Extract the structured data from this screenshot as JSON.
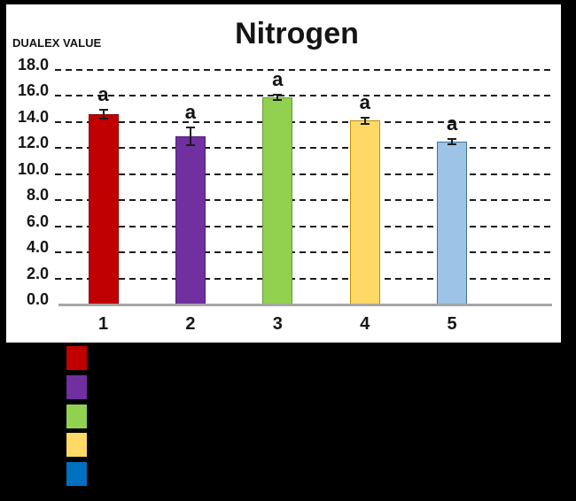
{
  "chart_data": {
    "type": "bar",
    "title": "Nitrogen",
    "ylabel": "DUALEX VALUE",
    "categories": [
      "1",
      "2",
      "3",
      "4",
      "5"
    ],
    "values": [
      14.6,
      12.9,
      15.9,
      14.1,
      12.5
    ],
    "errors": [
      0.4,
      0.75,
      0.3,
      0.3,
      0.3
    ],
    "point_labels": [
      "a",
      "a",
      "a",
      "a",
      "a"
    ],
    "ylim": [
      0,
      18
    ],
    "ytick_step": 2,
    "ytick_labels": [
      "0.0",
      "2.0",
      "4.0",
      "6.0",
      "8.0",
      "10.0",
      "12.0",
      "14.0",
      "16.0",
      "18.0"
    ],
    "grid": "dashed-horizontal",
    "axis_line_color": "#a6a6a6",
    "bar_colors": [
      "#c00000",
      "#7030a0",
      "#92d050",
      "#ffd966",
      "#9dc3e6"
    ],
    "bar_border_colors": [
      "#8b0000",
      "#50207a",
      "#669934",
      "#bf9000",
      "#41719c"
    ],
    "error_bar_color": "#1c1c1c",
    "background_color": "#000000",
    "panel_color": "#ffffff",
    "legend": {
      "position": "bottom-left-outside",
      "labels_visible": false,
      "swatch_colors": [
        "#c00000",
        "#7030a0",
        "#92d050",
        "#ffd966",
        "#0070c0"
      ],
      "swatch_names": [
        "red",
        "purple",
        "green",
        "yellow",
        "blue"
      ]
    }
  }
}
